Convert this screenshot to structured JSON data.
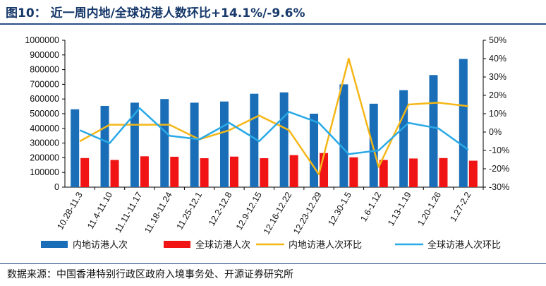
{
  "header": {
    "figure_label": "图10：",
    "title_text": "近一周内地/全球访港人数环比+14.1%/-9.6%"
  },
  "footer": {
    "source": "数据来源：中国香港特别行政区政府入境事务处、开源证券研究所"
  },
  "colors": {
    "mainland_bar": "#1a6eb8",
    "global_bar": "#f01414",
    "mainland_line": "#f5b718",
    "global_line": "#29a9e6",
    "title_color": "#16386a",
    "rule_color": "#2a4f86"
  },
  "chart_data": {
    "type": "bar",
    "title": "近一周内地/全球访港人数环比+14.1%/-9.6%",
    "categories": [
      "10.28-11.3",
      "11.4-11.10",
      "11.11-11.17",
      "11.18-11.24",
      "11.25-12.1",
      "12.2-12.8",
      "12.9-12.15",
      "12.16-12.22",
      "12.23-12.29",
      "12.30-1.5",
      "1.6-1.12",
      "1.13-1.19",
      "1.20-1.26",
      "1.27-2.2"
    ],
    "y_left": {
      "ylim": [
        0,
        1000000
      ],
      "ticks": [
        "0",
        "100000",
        "200000",
        "300000",
        "400000",
        "500000",
        "600000",
        "700000",
        "800000",
        "900000",
        "1000000"
      ]
    },
    "y_right": {
      "ylim": [
        -30,
        50
      ],
      "ticks": [
        "-30%",
        "-20%",
        "-10%",
        "0%",
        "10%",
        "20%",
        "30%",
        "40%",
        "50%"
      ]
    },
    "series": [
      {
        "name": "内地访港人次",
        "kind": "bar",
        "axis": "left",
        "values": [
          530000,
          553000,
          575000,
          600000,
          575000,
          583000,
          636000,
          645000,
          500000,
          700000,
          568000,
          660000,
          763000,
          873000
        ]
      },
      {
        "name": "全球访港人次",
        "kind": "bar",
        "axis": "left",
        "values": [
          198000,
          185000,
          210000,
          207000,
          197000,
          208000,
          197000,
          218000,
          232000,
          203000,
          185000,
          195000,
          198000,
          180000
        ]
      },
      {
        "name": "内地访港人次环比",
        "kind": "line",
        "axis": "right",
        "values": [
          -5,
          4,
          4,
          4,
          -4,
          1,
          9,
          1,
          -23,
          40,
          -19,
          15,
          16,
          14.1
        ]
      },
      {
        "name": "全球访港人次环比",
        "kind": "line",
        "axis": "right",
        "values": [
          1,
          -6,
          13,
          -2,
          -4,
          5,
          -5,
          11,
          5,
          -12,
          -10,
          5,
          2,
          -9.6
        ]
      }
    ],
    "legend_position": "bottom",
    "grid": false
  }
}
